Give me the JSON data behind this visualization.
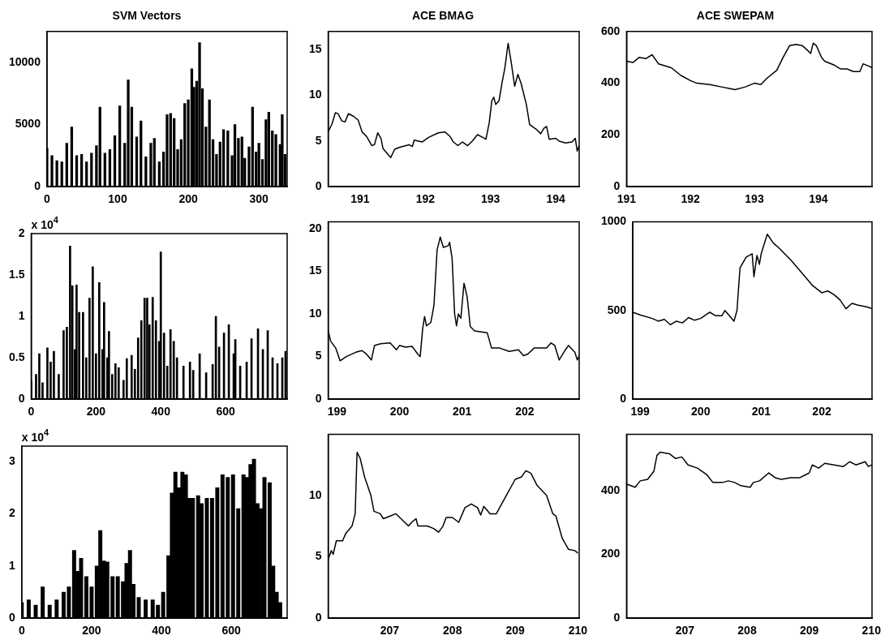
{
  "chart_data": [
    {
      "type": "bar",
      "title": "SVM Vectors",
      "color": "#000000",
      "xlim": [
        0,
        340
      ],
      "xticks": [
        0,
        100,
        200,
        300
      ],
      "ylim": [
        0,
        12500
      ],
      "yticks": [
        0,
        5000,
        10000
      ],
      "x": [
        0,
        7,
        14,
        21,
        28,
        35,
        42,
        49,
        56,
        63,
        70,
        75,
        82,
        89,
        96,
        103,
        110,
        115,
        120,
        127,
        133,
        140,
        147,
        152,
        159,
        165,
        170,
        175,
        180,
        185,
        190,
        195,
        200,
        205,
        208,
        212,
        216,
        220,
        225,
        230,
        235,
        240,
        245,
        250,
        256,
        262,
        266,
        271,
        276,
        280,
        286,
        291,
        296,
        300,
        305,
        310,
        314,
        319,
        324,
        330,
        333,
        337
      ],
      "values": [
        3100,
        2500,
        2100,
        2000,
        3500,
        4800,
        2500,
        2600,
        2000,
        2700,
        3300,
        6400,
        2700,
        3000,
        4100,
        6500,
        3500,
        8600,
        6400,
        4000,
        5300,
        2400,
        3500,
        3900,
        2000,
        2800,
        5800,
        5900,
        5500,
        3000,
        3800,
        6700,
        7000,
        9500,
        8000,
        8500,
        11600,
        7900,
        4800,
        7000,
        3800,
        2600,
        3600,
        4600,
        4500,
        2500,
        5000,
        3900,
        4000,
        2300,
        3200,
        6400,
        2800,
        3500,
        2200,
        5400,
        6000,
        4500,
        4200,
        3400,
        5800,
        2600
      ]
    },
    {
      "type": "line",
      "title": "ACE BMAG",
      "color": "#000000",
      "xlim": [
        190.51,
        194.36
      ],
      "xticks": [
        191,
        192,
        193,
        194
      ],
      "ylim": [
        0,
        17
      ],
      "yticks": [
        0,
        5,
        10,
        15
      ],
      "x": [
        190.51,
        190.57,
        190.62,
        190.66,
        190.72,
        190.77,
        190.82,
        190.9,
        190.97,
        191.03,
        191.1,
        191.18,
        191.22,
        191.27,
        191.32,
        191.35,
        191.42,
        191.47,
        191.53,
        191.6,
        191.75,
        191.8,
        191.83,
        191.95,
        192.05,
        192.2,
        192.3,
        192.38,
        192.43,
        192.5,
        192.57,
        192.65,
        192.72,
        192.8,
        192.88,
        192.93,
        192.98,
        193.02,
        193.05,
        193.08,
        193.13,
        193.18,
        193.22,
        193.27,
        193.32,
        193.37,
        193.42,
        193.47,
        193.55,
        193.6,
        193.7,
        193.77,
        193.82,
        193.86,
        193.9,
        194.0,
        194.05,
        194.15,
        194.25,
        194.3,
        194.33,
        194.36
      ],
      "values": [
        6.0,
        6.9,
        8.1,
        8.0,
        7.2,
        7.1,
        8.0,
        7.7,
        7.3,
        6.0,
        5.5,
        4.5,
        4.6,
        5.9,
        5.3,
        4.2,
        3.6,
        3.2,
        4.1,
        4.3,
        4.6,
        4.4,
        5.1,
        4.9,
        5.4,
        5.9,
        6.0,
        5.5,
        4.9,
        4.5,
        4.9,
        4.5,
        5.0,
        5.7,
        5.4,
        5.2,
        7.0,
        9.4,
        9.8,
        9.0,
        9.4,
        11.5,
        13,
        15.7,
        13.5,
        11.0,
        12.3,
        11.3,
        9,
        6.8,
        6.3,
        5.8,
        6.4,
        6.6,
        5.2,
        5.3,
        5.0,
        4.8,
        4.9,
        5.3,
        3.9,
        4.5
      ]
    },
    {
      "type": "line",
      "title": "ACE SWEPAM",
      "color": "#000000",
      "xlim": [
        191,
        194.84
      ],
      "xticks": [
        191,
        192,
        193,
        194
      ],
      "ylim": [
        0,
        600
      ],
      "yticks": [
        0,
        200,
        400,
        600
      ],
      "x": [
        191,
        191.1,
        191.2,
        191.3,
        191.4,
        191.5,
        191.7,
        191.85,
        192.0,
        192.1,
        192.3,
        192.5,
        192.6,
        192.7,
        192.85,
        193.0,
        193.1,
        193.2,
        193.35,
        193.45,
        193.55,
        193.65,
        193.75,
        193.82,
        193.88,
        193.92,
        193.97,
        194.05,
        194.1,
        194.25,
        194.35,
        194.45,
        194.55,
        194.65,
        194.7,
        194.8,
        194.84
      ],
      "values": [
        485,
        480,
        500,
        495,
        510,
        475,
        460,
        430,
        410,
        400,
        395,
        385,
        380,
        375,
        385,
        400,
        395,
        420,
        450,
        500,
        545,
        550,
        545,
        530,
        515,
        555,
        545,
        500,
        485,
        470,
        455,
        455,
        445,
        445,
        475,
        465,
        460
      ]
    },
    {
      "type": "bar",
      "ylabel": "x 10$^{4}$",
      "color": "#000000",
      "xlim": [
        0,
        790
      ],
      "xticks": [
        0,
        200,
        400,
        600
      ],
      "ylim": [
        0,
        2
      ],
      "yticks": [
        0,
        0.5,
        1,
        1.5,
        2
      ],
      "x": [
        0,
        15,
        25,
        35,
        50,
        60,
        70,
        85,
        100,
        110,
        120,
        127,
        135,
        140,
        148,
        160,
        170,
        180,
        190,
        200,
        210,
        220,
        225,
        235,
        240,
        250,
        260,
        270,
        285,
        295,
        310,
        320,
        330,
        340,
        350,
        358,
        365,
        375,
        385,
        395,
        400,
        410,
        420,
        430,
        440,
        450,
        470,
        490,
        500,
        520,
        540,
        560,
        570,
        580,
        595,
        610,
        625,
        630,
        645,
        665,
        680,
        700,
        715,
        730,
        745,
        760,
        775,
        785
      ],
      "values": [
        0.22,
        0.3,
        0.55,
        0.2,
        0.62,
        0.45,
        0.58,
        0.3,
        0.83,
        0.87,
        1.85,
        1.37,
        0.6,
        1.38,
        1.05,
        1.05,
        0.5,
        1.22,
        1.6,
        0.55,
        1.41,
        0.6,
        1.17,
        0.5,
        0.82,
        0.3,
        0.43,
        0.38,
        0.23,
        0.49,
        0.53,
        0.36,
        0.74,
        0.95,
        1.22,
        1.22,
        0.9,
        1.23,
        0.95,
        0.7,
        1.78,
        0.8,
        0.4,
        0.84,
        0.7,
        0.5,
        0.4,
        0.45,
        0.35,
        0.55,
        0.32,
        0.42,
        1.0,
        0.63,
        0.8,
        0.9,
        0.55,
        0.72,
        0.4,
        0.45,
        0.73,
        0.85,
        0.6,
        0.83,
        0.5,
        0.43,
        0.5,
        0.58
      ]
    },
    {
      "type": "line",
      "color": "#000000",
      "xlim": [
        198.86,
        202.87
      ],
      "xticks": [
        199,
        200,
        201,
        202
      ],
      "ylim": [
        0,
        20.8
      ],
      "yticks": [
        0,
        5,
        10,
        15,
        20
      ],
      "x": [
        198.86,
        198.9,
        198.98,
        199.05,
        199.15,
        199.3,
        199.4,
        199.47,
        199.55,
        199.6,
        199.7,
        199.85,
        199.95,
        200.0,
        200.1,
        200.2,
        200.3,
        200.33,
        200.37,
        200.4,
        200.43,
        200.5,
        200.55,
        200.6,
        200.65,
        200.7,
        200.78,
        200.8,
        200.84,
        200.88,
        200.91,
        200.94,
        200.98,
        201.03,
        201.08,
        201.13,
        201.2,
        201.4,
        201.47,
        201.6,
        201.75,
        201.9,
        201.98,
        202.05,
        202.15,
        202.35,
        202.42,
        202.48,
        202.55,
        202.65,
        202.7,
        202.8,
        202.84,
        202.87
      ],
      "values": [
        8,
        6.8,
        6,
        4.5,
        5,
        5.5,
        5.7,
        5.3,
        4.6,
        6.3,
        6.5,
        6.6,
        5.8,
        6.3,
        6.1,
        6.2,
        5.2,
        5.0,
        8.3,
        9.7,
        8.6,
        9,
        11,
        17.5,
        19,
        17.8,
        18.0,
        18.4,
        16.5,
        10,
        8.6,
        10,
        9.5,
        13.6,
        12,
        8.5,
        8.0,
        7.8,
        6.0,
        6.0,
        5.6,
        5.8,
        5.1,
        5.3,
        6.0,
        6.0,
        6.6,
        6.3,
        4.6,
        5.8,
        6.3,
        5.5,
        4.6,
        5.1
      ]
    },
    {
      "type": "line",
      "color": "#000000",
      "xlim": [
        198.88,
        202.83
      ],
      "xticks": [
        199,
        200,
        201,
        202
      ],
      "ylim": [
        0,
        1000
      ],
      "yticks": [
        0,
        500,
        1000
      ],
      "x": [
        198.88,
        199.0,
        199.2,
        199.3,
        199.4,
        199.5,
        199.6,
        199.7,
        199.8,
        199.9,
        200.0,
        200.15,
        200.25,
        200.35,
        200.4,
        200.5,
        200.55,
        200.6,
        200.65,
        200.75,
        200.85,
        200.88,
        200.93,
        200.97,
        201.0,
        201.1,
        201.2,
        201.3,
        201.5,
        201.7,
        201.85,
        202.0,
        202.1,
        202.2,
        202.3,
        202.4,
        202.5,
        202.6,
        202.75,
        202.83
      ],
      "values": [
        490,
        475,
        455,
        440,
        450,
        420,
        440,
        430,
        460,
        445,
        455,
        490,
        470,
        470,
        500,
        460,
        440,
        500,
        740,
        800,
        820,
        690,
        810,
        760,
        820,
        930,
        880,
        850,
        780,
        700,
        640,
        600,
        610,
        590,
        560,
        510,
        540,
        530,
        520,
        510
      ]
    },
    {
      "type": "bar",
      "ylabel": "x 10$^{4}$",
      "color": "#000000",
      "xlim": [
        0,
        760
      ],
      "xticks": [
        0,
        200,
        400,
        600
      ],
      "ylim": [
        0,
        3.3
      ],
      "yticks": [
        0,
        1,
        2,
        3
      ],
      "x": [
        0,
        20,
        40,
        60,
        80,
        100,
        120,
        135,
        150,
        160,
        170,
        185,
        200,
        215,
        225,
        235,
        245,
        260,
        275,
        290,
        300,
        310,
        320,
        335,
        355,
        375,
        390,
        405,
        420,
        430,
        440,
        450,
        460,
        470,
        480,
        490,
        505,
        515,
        530,
        545,
        560,
        575,
        590,
        605,
        620,
        635,
        645,
        655,
        665,
        675,
        685,
        695,
        710,
        720,
        730,
        740
      ],
      "values": [
        0.3,
        0.35,
        0.25,
        0.6,
        0.25,
        0.35,
        0.5,
        0.6,
        1.3,
        0.9,
        1.15,
        0.8,
        0.6,
        1.0,
        1.68,
        1.1,
        1.08,
        0.8,
        0.8,
        0.7,
        1.05,
        1.3,
        0.65,
        0.4,
        0.35,
        0.35,
        0.25,
        0.5,
        1.2,
        2.4,
        2.8,
        2.5,
        2.8,
        2.75,
        2.3,
        2.3,
        2.35,
        2.2,
        2.3,
        2.3,
        2.5,
        2.75,
        2.7,
        2.75,
        2.1,
        2.75,
        2.7,
        2.95,
        3.05,
        2.2,
        2.1,
        2.7,
        2.6,
        1.0,
        0.5,
        0.3
      ]
    },
    {
      "type": "line",
      "color": "#000000",
      "xlim": [
        206.02,
        210.02
      ],
      "xticks": [
        207,
        208,
        209,
        210
      ],
      "ylim": [
        0,
        14.97
      ],
      "yticks": [
        0,
        5,
        10
      ],
      "x": [
        206.02,
        206.07,
        206.1,
        206.15,
        206.25,
        206.3,
        206.4,
        206.45,
        206.48,
        206.53,
        206.6,
        206.7,
        206.75,
        206.85,
        206.9,
        207.0,
        207.1,
        207.2,
        207.3,
        207.35,
        207.42,
        207.45,
        207.6,
        207.7,
        207.78,
        207.85,
        207.9,
        208.0,
        208.1,
        208.2,
        208.3,
        208.4,
        208.45,
        208.5,
        208.6,
        208.7,
        208.85,
        209.0,
        209.1,
        209.17,
        209.25,
        209.35,
        209.5,
        209.6,
        209.65,
        209.75,
        209.85,
        209.95,
        210.0
      ],
      "values": [
        4.8,
        5.5,
        5.2,
        6.3,
        6.3,
        6.9,
        7.5,
        8.5,
        13.5,
        13,
        11.5,
        10,
        8.7,
        8.5,
        8.1,
        8.3,
        8.5,
        8,
        7.5,
        7.8,
        8.1,
        7.5,
        7.5,
        7.3,
        7.0,
        7.5,
        8.2,
        8.2,
        7.8,
        9.0,
        9.3,
        9.0,
        8.4,
        9.1,
        8.5,
        8.5,
        9.9,
        11.3,
        11.5,
        12,
        11.8,
        10.8,
        10.0,
        8.5,
        8.3,
        6.5,
        5.6,
        5.5,
        5.3
      ]
    },
    {
      "type": "line",
      "color": "#000000",
      "xlim": [
        206.06,
        210.01
      ],
      "xticks": [
        207,
        208,
        209,
        210
      ],
      "ylim": [
        0,
        576
      ],
      "yticks": [
        0,
        200,
        400
      ],
      "x": [
        206.06,
        206.2,
        206.28,
        206.4,
        206.5,
        206.55,
        206.6,
        206.75,
        206.85,
        206.95,
        207.05,
        207.2,
        207.35,
        207.45,
        207.6,
        207.7,
        207.8,
        207.9,
        208.05,
        208.1,
        208.2,
        208.35,
        208.45,
        208.55,
        208.7,
        208.85,
        208.95,
        209.0,
        209.05,
        209.15,
        209.25,
        209.4,
        209.55,
        209.65,
        209.75,
        209.9,
        209.95,
        210.01
      ],
      "values": [
        420,
        410,
        430,
        435,
        460,
        510,
        520,
        515,
        500,
        505,
        480,
        470,
        450,
        425,
        425,
        430,
        425,
        415,
        410,
        425,
        430,
        455,
        440,
        435,
        440,
        440,
        450,
        455,
        480,
        470,
        485,
        480,
        475,
        490,
        480,
        490,
        475,
        480
      ]
    }
  ]
}
